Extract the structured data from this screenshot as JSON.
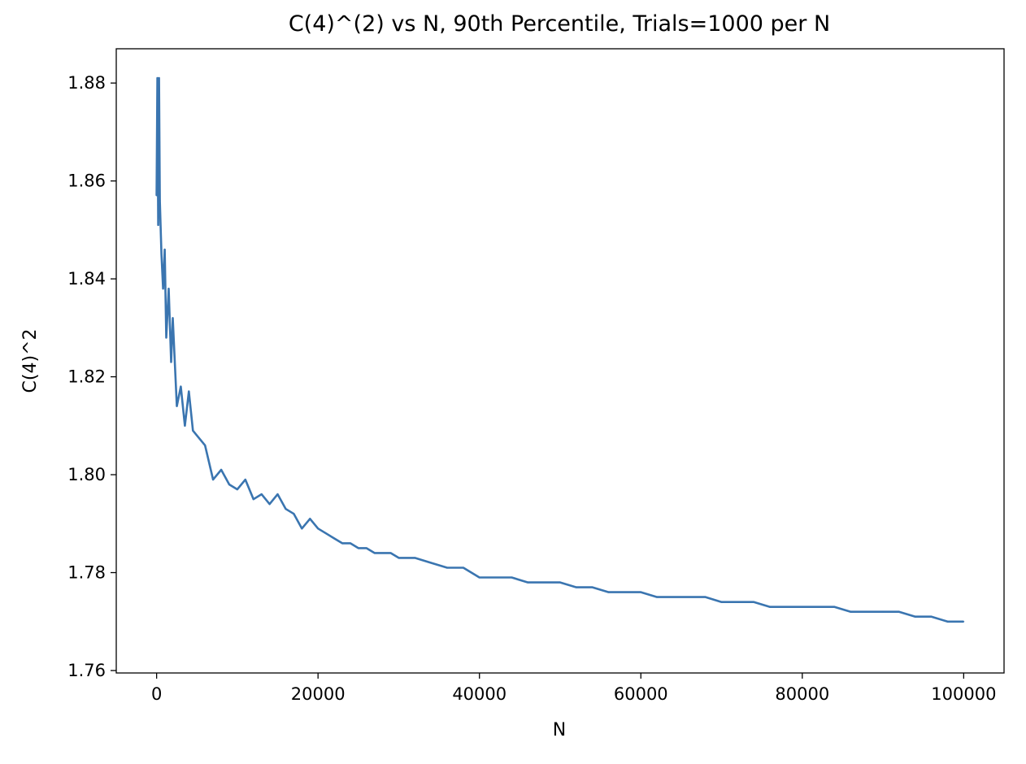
{
  "chart_data": {
    "type": "line",
    "title": "C(4)^(2) vs N, 90th Percentile, Trials=1000 per N",
    "xlabel": "N",
    "ylabel": "C(4)^2",
    "xlim": [
      -5000,
      105000
    ],
    "ylim": [
      1.7595,
      1.887
    ],
    "xticks": [
      0,
      20000,
      40000,
      60000,
      80000,
      100000
    ],
    "xtick_labels": [
      "0",
      "20000",
      "40000",
      "60000",
      "80000",
      "100000"
    ],
    "yticks": [
      1.76,
      1.78,
      1.8,
      1.82,
      1.84,
      1.86,
      1.88
    ],
    "ytick_labels": [
      "1.76",
      "1.78",
      "1.80",
      "1.82",
      "1.84",
      "1.86",
      "1.88"
    ],
    "grid": false,
    "legend": "none",
    "series": [
      {
        "color": "#3a75b0",
        "x": [
          0,
          100,
          200,
          300,
          400,
          600,
          800,
          1000,
          1200,
          1500,
          1800,
          2000,
          2500,
          3000,
          3500,
          4000,
          4500,
          5000,
          6000,
          7000,
          8000,
          9000,
          10000,
          11000,
          12000,
          13000,
          14000,
          15000,
          16000,
          17000,
          18000,
          19000,
          20000,
          21000,
          22000,
          23000,
          24000,
          25000,
          26000,
          27000,
          28000,
          29000,
          30000,
          32000,
          34000,
          36000,
          38000,
          40000,
          42000,
          44000,
          46000,
          48000,
          50000,
          52000,
          54000,
          56000,
          58000,
          60000,
          62000,
          64000,
          66000,
          68000,
          70000,
          72000,
          74000,
          76000,
          78000,
          80000,
          82000,
          84000,
          86000,
          88000,
          90000,
          92000,
          94000,
          96000,
          98000,
          100000
        ],
        "y": [
          1.857,
          1.881,
          1.851,
          1.881,
          1.856,
          1.845,
          1.838,
          1.846,
          1.828,
          1.838,
          1.823,
          1.832,
          1.814,
          1.818,
          1.81,
          1.817,
          1.809,
          1.808,
          1.806,
          1.799,
          1.801,
          1.798,
          1.797,
          1.799,
          1.795,
          1.796,
          1.794,
          1.796,
          1.793,
          1.792,
          1.789,
          1.791,
          1.789,
          1.788,
          1.787,
          1.786,
          1.786,
          1.785,
          1.785,
          1.784,
          1.784,
          1.784,
          1.783,
          1.783,
          1.782,
          1.781,
          1.781,
          1.779,
          1.779,
          1.779,
          1.778,
          1.778,
          1.778,
          1.777,
          1.777,
          1.776,
          1.776,
          1.776,
          1.775,
          1.775,
          1.775,
          1.775,
          1.774,
          1.774,
          1.774,
          1.773,
          1.773,
          1.773,
          1.773,
          1.773,
          1.772,
          1.772,
          1.772,
          1.772,
          1.771,
          1.771,
          1.77,
          1.77
        ]
      }
    ]
  }
}
